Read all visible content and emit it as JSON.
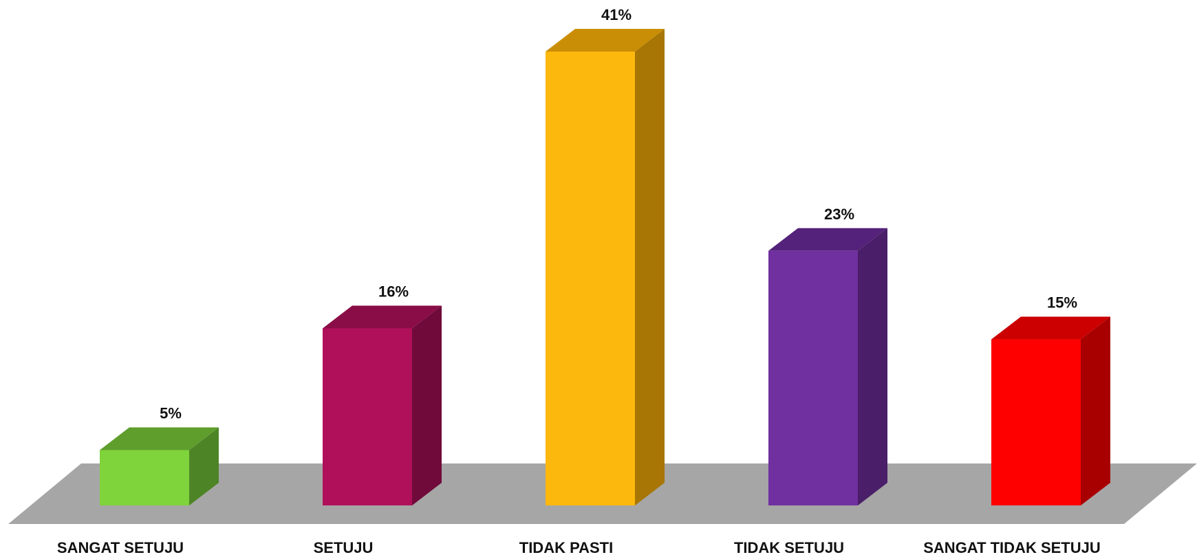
{
  "chart_data": {
    "type": "bar",
    "title": "",
    "xlabel": "",
    "ylabel": "",
    "categories": [
      "SANGAT SETUJU",
      "SETUJU",
      "TIDAK PASTI",
      "TIDAK SETUJU",
      "SANGAT TIDAK SETUJU"
    ],
    "values": [
      5,
      16,
      41,
      23,
      15
    ],
    "value_labels": [
      "5%",
      "16%",
      "41%",
      "23%",
      "15%"
    ],
    "ylim": [
      0,
      41
    ],
    "grid": false,
    "legend": "none",
    "colors": [
      {
        "front": "#7fd33b",
        "top": "#5f9e2d",
        "side": "#4d8526"
      },
      {
        "front": "#b0105a",
        "top": "#8a0d47",
        "side": "#700a3a"
      },
      {
        "front": "#fdb80d",
        "top": "#c98e05",
        "side": "#a77604"
      },
      {
        "front": "#7030a0",
        "top": "#54227a",
        "side": "#4a1e68"
      },
      {
        "front": "#ff0000",
        "top": "#cc0000",
        "side": "#a80000"
      }
    ],
    "floor_color": "#a6a6a6"
  }
}
